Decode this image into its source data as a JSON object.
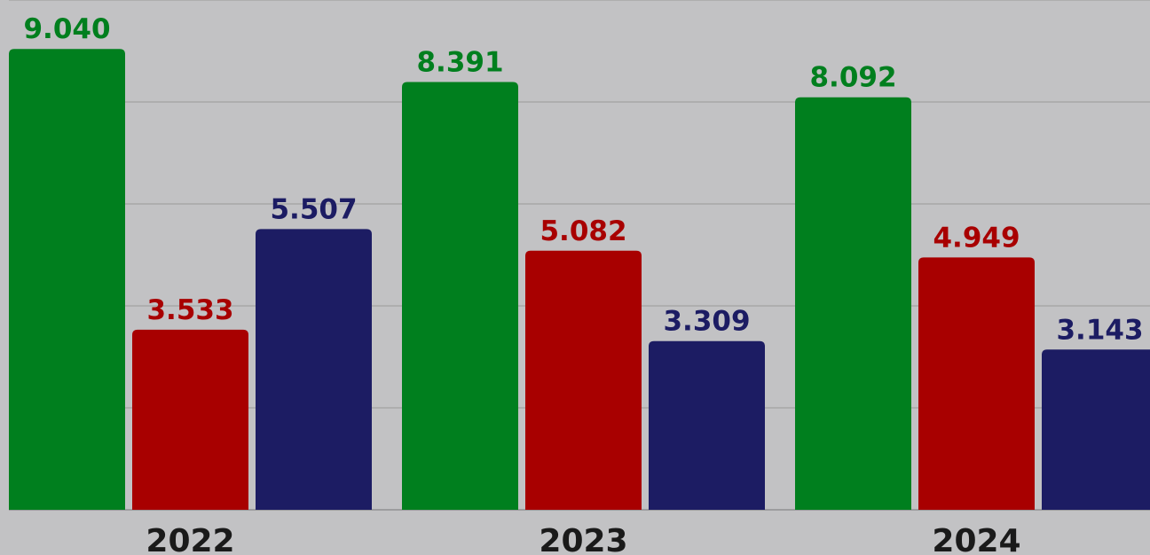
{
  "chart_data": {
    "type": "bar",
    "categories": [
      "2022",
      "2023",
      "2024"
    ],
    "series": [
      {
        "color": "#007f1e",
        "values": [
          9040,
          8391,
          8092
        ],
        "value_labels": [
          "9.040",
          "8.391",
          "8.092"
        ]
      },
      {
        "color": "#a80000",
        "values": [
          3533,
          5082,
          4949
        ],
        "value_labels": [
          "3.533",
          "5.082",
          "4.949"
        ]
      },
      {
        "color": "#1c1c63",
        "values": [
          5507,
          3309,
          3143
        ],
        "value_labels": [
          "5.507",
          "3.309",
          "3.143"
        ]
      }
    ],
    "ylim": [
      0,
      10000
    ],
    "yticks": [
      0,
      2000,
      4000,
      6000,
      8000,
      10000
    ],
    "grid": true
  }
}
